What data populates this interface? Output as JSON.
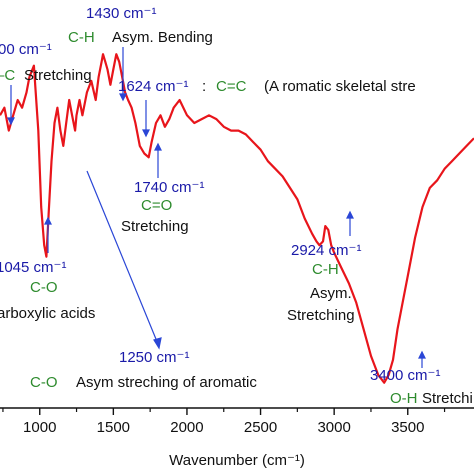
{
  "chart_data": {
    "type": "line",
    "xlabel": "Wavenumber (cm⁻¹)",
    "xlim": [
      730,
      3950
    ],
    "x_ticks": [
      1000,
      1500,
      2000,
      2500,
      3000,
      3500
    ],
    "x_tick_labels": [
      "1000",
      "1500",
      "2000",
      "2500",
      "3000",
      "3500"
    ],
    "ylim": [
      0,
      100
    ],
    "y_ticks_shown": false,
    "series": [
      {
        "color": "#e8151b",
        "x": [
          730,
          760,
          790,
          820,
          850,
          880,
          910,
          930,
          960,
          990,
          1010,
          1030,
          1045,
          1060,
          1080,
          1100,
          1120,
          1140,
          1160,
          1180,
          1200,
          1220,
          1240,
          1250,
          1270,
          1290,
          1320,
          1350,
          1380,
          1400,
          1420,
          1430,
          1445,
          1460,
          1480,
          1500,
          1520,
          1540,
          1560,
          1580,
          1600,
          1624,
          1650,
          1680,
          1710,
          1740,
          1760,
          1790,
          1820,
          1850,
          1880,
          1910,
          1950,
          2000,
          2050,
          2100,
          2150,
          2200,
          2250,
          2300,
          2350,
          2400,
          2450,
          2500,
          2550,
          2600,
          2650,
          2700,
          2750,
          2800,
          2850,
          2880,
          2900,
          2924,
          2940,
          2960,
          2980,
          3000,
          3050,
          3100,
          3150,
          3200,
          3250,
          3300,
          3340,
          3370,
          3400,
          3430,
          3460,
          3500,
          3550,
          3600,
          3650,
          3700,
          3750,
          3800,
          3850,
          3900,
          3950
        ],
        "y": [
          74,
          76,
          70,
          74,
          78,
          76,
          80,
          84,
          87,
          70,
          50,
          40,
          37,
          48,
          62,
          72,
          76,
          70,
          66,
          72,
          78,
          74,
          70,
          74,
          78,
          74,
          80,
          83,
          78,
          84,
          88,
          90,
          88,
          86,
          82,
          86,
          90,
          88,
          84,
          80,
          78,
          76,
          72,
          66,
          64,
          63,
          67,
          72,
          74,
          71,
          73,
          76,
          78,
          74,
          72,
          73,
          74,
          73,
          71,
          70,
          70,
          69,
          67,
          65,
          62,
          60,
          58,
          55,
          52,
          47,
          43,
          41,
          40,
          41,
          45,
          44,
          40,
          38,
          34,
          30,
          25,
          18,
          11,
          6,
          4,
          6,
          10,
          18,
          24,
          32,
          42,
          50,
          55,
          57,
          60,
          62,
          64,
          66,
          68
        ]
      }
    ],
    "annotations": [
      {
        "wavenumber": "00 cm⁻¹",
        "group": "‒C",
        "desc": "Stretching"
      },
      {
        "wavenumber": "1430 cm⁻¹",
        "group": "C-H",
        "desc": "Asym. Bending"
      },
      {
        "wavenumber": "1624 cm⁻¹",
        "sep": ":",
        "group": "C=C",
        "desc": "(A romatic skeletal stre"
      },
      {
        "wavenumber": "1740 cm⁻¹",
        "group": "C=O",
        "desc": "Stretching"
      },
      {
        "wavenumber": "1045 cm⁻¹",
        "group": "C-O",
        "desc": "arboxylic acids"
      },
      {
        "wavenumber": "1250 cm⁻¹",
        "group": "C-O",
        "desc": "Asym streching of aromatic"
      },
      {
        "wavenumber": "2924 cm⁻¹",
        "group": "C-H",
        "desc": "Asym.",
        "desc2": "Stretching"
      },
      {
        "wavenumber": "3400 cm⁻¹",
        "group": "O-H",
        "desc": "Stretchi"
      }
    ]
  }
}
